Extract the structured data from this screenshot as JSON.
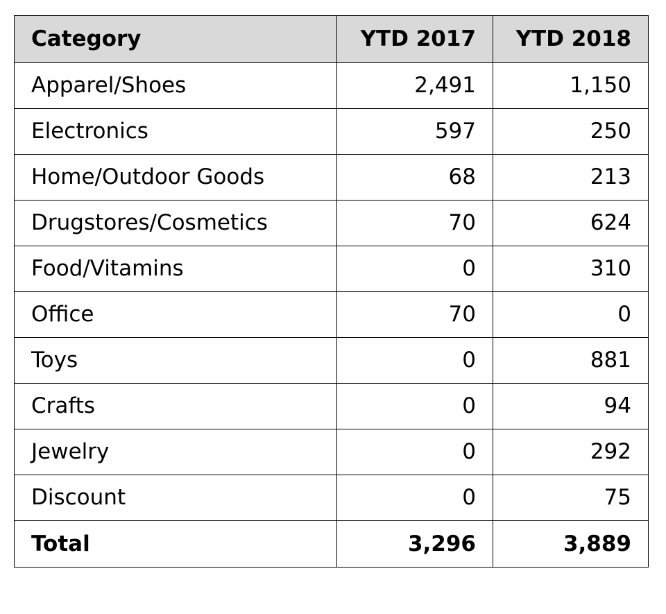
{
  "chart_data": {
    "type": "table",
    "columns": [
      "Category",
      "YTD 2017",
      "YTD 2018"
    ],
    "rows": [
      {
        "category": "Apparel/Shoes",
        "ytd_2017": "2,491",
        "ytd_2018": "1,150"
      },
      {
        "category": "Electronics",
        "ytd_2017": "597",
        "ytd_2018": "250"
      },
      {
        "category": "Home/Outdoor Goods",
        "ytd_2017": "68",
        "ytd_2018": "213"
      },
      {
        "category": "Drugstores/Cosmetics",
        "ytd_2017": "70",
        "ytd_2018": "624"
      },
      {
        "category": "Food/Vitamins",
        "ytd_2017": "0",
        "ytd_2018": "310"
      },
      {
        "category": "Office",
        "ytd_2017": "70",
        "ytd_2018": "0"
      },
      {
        "category": "Toys",
        "ytd_2017": "0",
        "ytd_2018": "881"
      },
      {
        "category": "Crafts",
        "ytd_2017": "0",
        "ytd_2018": "94"
      },
      {
        "category": "Jewelry",
        "ytd_2017": "0",
        "ytd_2018": "292"
      },
      {
        "category": "Discount",
        "ytd_2017": "0",
        "ytd_2018": "75"
      }
    ],
    "total": {
      "label": "Total",
      "ytd_2017": "3,296",
      "ytd_2018": "3,889"
    }
  },
  "colors": {
    "header_background": "#d9d9d9",
    "border": "#000000",
    "text": "#000000"
  }
}
